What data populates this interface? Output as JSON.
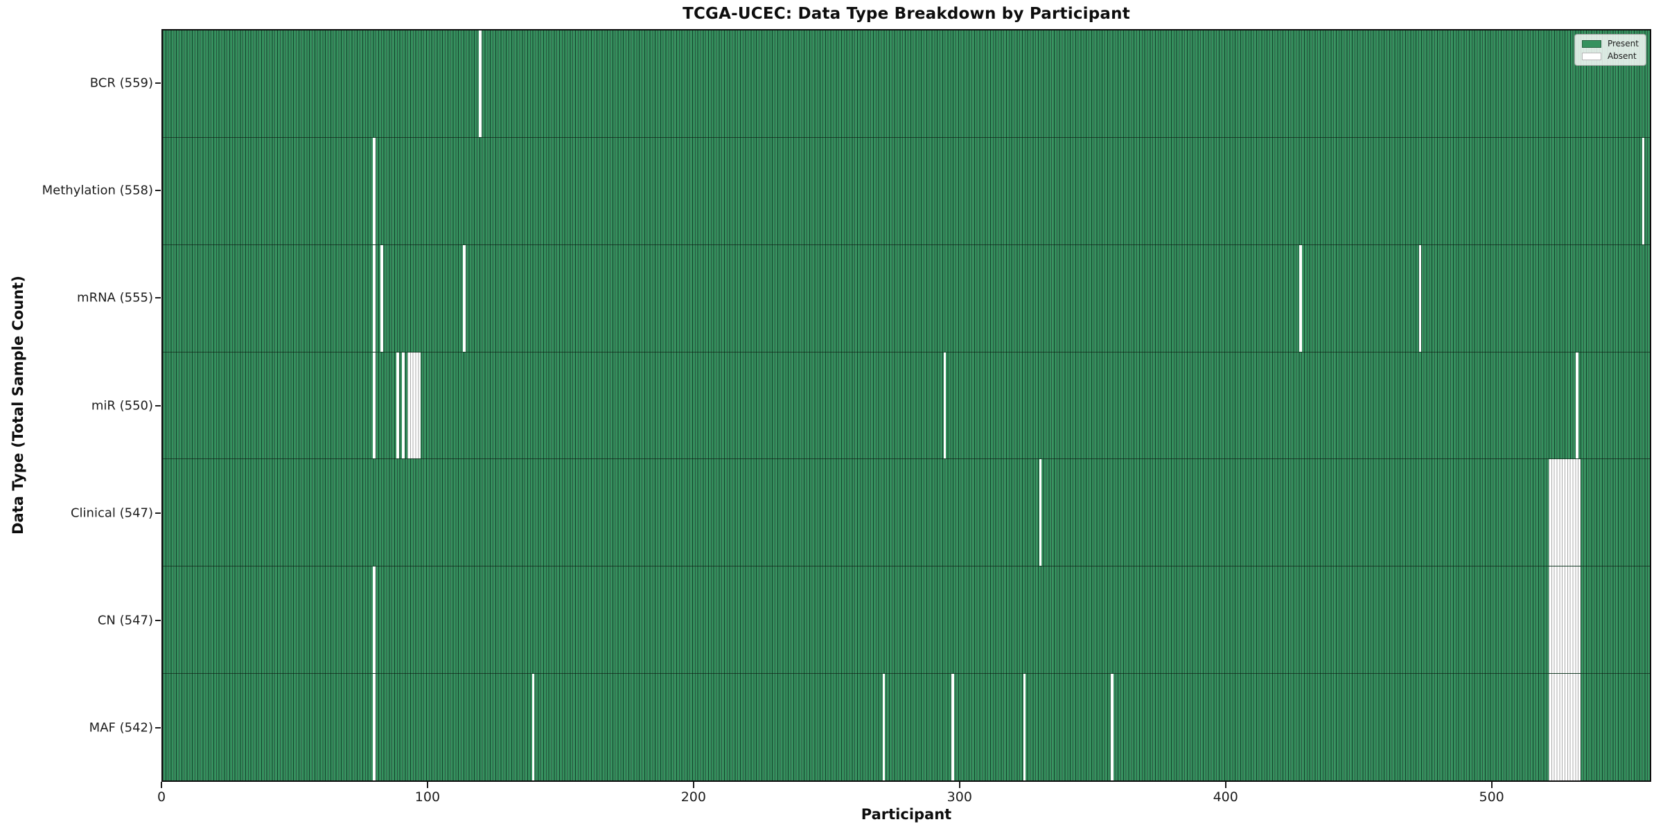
{
  "chart_data": {
    "type": "heatmap",
    "title": "TCGA-UCEC: Data Type Breakdown by Participant",
    "xlabel": "Participant",
    "ylabel": "Data Type (Total Sample Count)",
    "xlim": [
      0,
      560
    ],
    "x_ticks": [
      0,
      100,
      200,
      300,
      400,
      500
    ],
    "total_participants": 560,
    "grid": false,
    "legend_position": "upper right",
    "colors": {
      "present": "#35915e",
      "absent": "#ffffff",
      "bar_edge": "#12402a",
      "absent_edge": "#a8a8a8"
    },
    "legend": [
      {
        "label": "Present",
        "color": "#35915e"
      },
      {
        "label": "Absent",
        "color": "#ffffff"
      }
    ],
    "rows": [
      {
        "name": "BCR",
        "label": "BCR (559)",
        "total": 559,
        "absent_ranges": [
          [
            119,
            120
          ]
        ]
      },
      {
        "name": "Methylation",
        "label": "Methylation (558)",
        "total": 558,
        "absent_ranges": [
          [
            79,
            80
          ],
          [
            557,
            558
          ]
        ]
      },
      {
        "name": "mRNA",
        "label": "mRNA (555)",
        "total": 555,
        "absent_ranges": [
          [
            79,
            80
          ],
          [
            82,
            83
          ],
          [
            113,
            114
          ],
          [
            428,
            429
          ],
          [
            473,
            474
          ]
        ]
      },
      {
        "name": "miR",
        "label": "miR (550)",
        "total": 550,
        "absent_ranges": [
          [
            79,
            80
          ],
          [
            88,
            89
          ],
          [
            90,
            91
          ],
          [
            92,
            97
          ],
          [
            294,
            295
          ],
          [
            532,
            533
          ]
        ]
      },
      {
        "name": "Clinical",
        "label": "Clinical (547)",
        "total": 547,
        "absent_ranges": [
          [
            330,
            331
          ],
          [
            522,
            534
          ]
        ]
      },
      {
        "name": "CN",
        "label": "CN (547)",
        "total": 547,
        "absent_ranges": [
          [
            79,
            80
          ],
          [
            522,
            534
          ]
        ]
      },
      {
        "name": "MAF",
        "label": "MAF (542)",
        "total": 542,
        "absent_ranges": [
          [
            79,
            80
          ],
          [
            139,
            140
          ],
          [
            271,
            272
          ],
          [
            297,
            298
          ],
          [
            324,
            325
          ],
          [
            357,
            358
          ],
          [
            522,
            534
          ]
        ]
      }
    ]
  }
}
